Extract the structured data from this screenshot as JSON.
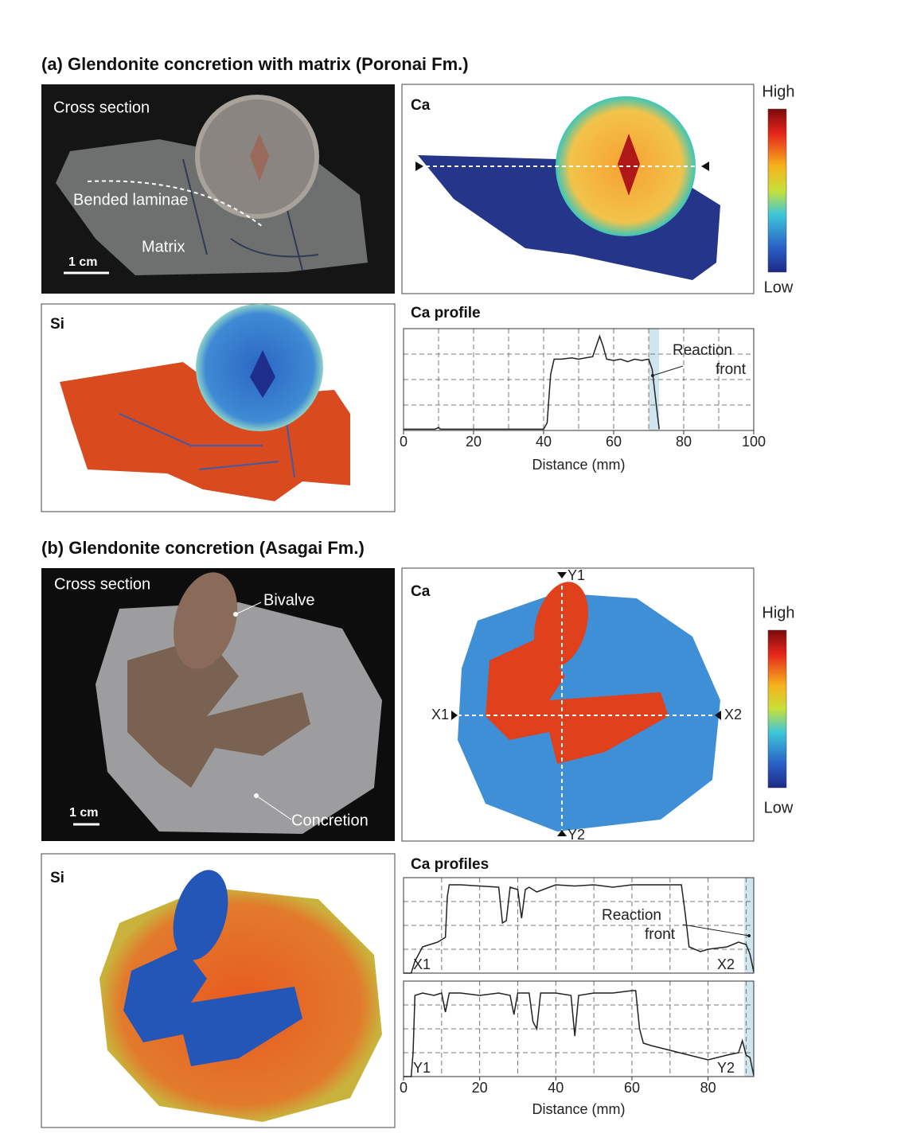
{
  "panel_a": {
    "title": "(a) Glendonite concretion with matrix (Poronai Fm.)",
    "photo": {
      "label": "Cross section",
      "annotations": [
        "Bended laminae",
        "Matrix"
      ],
      "scale_bar": "1 cm"
    },
    "ca_map": {
      "label": "Ca"
    },
    "colorbar": {
      "high": "High",
      "low": "Low"
    },
    "si_map": {
      "label": "Si"
    }
  },
  "panel_b": {
    "title": "(b) Glendonite concretion (Asagai Fm.)",
    "photo": {
      "label": "Cross section",
      "annotations": [
        "Bivalve",
        "Concretion"
      ],
      "scale_bar": "1 cm"
    },
    "ca_map": {
      "label": "Ca",
      "transect_labels": [
        "Y1",
        "Y2",
        "X1",
        "X2"
      ]
    },
    "colorbar": {
      "high": "High",
      "low": "Low"
    },
    "si_map": {
      "label": "Si"
    }
  },
  "chart_data": [
    {
      "type": "line",
      "title": "Ca profile",
      "xlabel": "Distance (mm)",
      "xlim": [
        0,
        100
      ],
      "xticks": [
        0,
        20,
        40,
        60,
        80,
        100
      ],
      "ylim": [
        0,
        4
      ],
      "band": [
        70,
        73
      ],
      "band_color": "#cfe6ef",
      "annotation": [
        "Reaction",
        "front"
      ],
      "series": [
        {
          "color": "#222222",
          "x": [
            0,
            9,
            10,
            10.5,
            11,
            40,
            41,
            42,
            43,
            45,
            48,
            50,
            52,
            54,
            55,
            56,
            57,
            58,
            60,
            62,
            64,
            66,
            68,
            70,
            71,
            72,
            73
          ],
          "values": [
            0.05,
            0.05,
            0.12,
            0.05,
            0.05,
            0.05,
            0.3,
            2.2,
            2.8,
            2.8,
            2.85,
            2.8,
            2.85,
            2.9,
            3.3,
            3.7,
            3.3,
            2.8,
            2.75,
            2.8,
            2.7,
            2.8,
            2.75,
            2.8,
            2.4,
            1.2,
            0.05
          ]
        }
      ]
    },
    {
      "type": "line",
      "title": "Ca profiles",
      "xlabel": "Distance (mm)",
      "xlim": [
        0,
        92
      ],
      "xticks": [
        0,
        20,
        40,
        60,
        80
      ],
      "ylim": [
        0,
        4
      ],
      "band": [
        89.5,
        92
      ],
      "band_color": "#cfe6ef",
      "annotation": [
        "Reaction",
        "front"
      ],
      "series": [
        {
          "color": "#222222",
          "end_labels": [
            "X1",
            "X2"
          ],
          "x": [
            0,
            2,
            3,
            5,
            7,
            9,
            10,
            11,
            11.5,
            12,
            15,
            20,
            25,
            26,
            27,
            28,
            30,
            31,
            32,
            33,
            35,
            40,
            45,
            50,
            55,
            60,
            65,
            70,
            73,
            74,
            75,
            78,
            80,
            85,
            88,
            90,
            91,
            92
          ],
          "values": [
            0,
            0,
            0.5,
            1.1,
            1.2,
            1.3,
            1.4,
            1.5,
            3.2,
            3.7,
            3.7,
            3.65,
            3.6,
            2.1,
            2.2,
            3.6,
            3.5,
            2.3,
            3.5,
            3.6,
            3.4,
            3.7,
            3.65,
            3.7,
            3.6,
            3.7,
            3.7,
            3.7,
            3.7,
            2.5,
            1.1,
            0.9,
            1.0,
            1.1,
            1.3,
            1.2,
            0.8,
            0.05
          ]
        },
        {
          "color": "#222222",
          "end_labels": [
            "Y1",
            "Y2"
          ],
          "x": [
            0,
            2,
            2.5,
            3,
            5,
            8,
            10,
            11,
            12,
            15,
            20,
            25,
            28,
            29,
            30,
            33,
            34,
            35,
            36,
            40,
            44,
            45,
            46,
            50,
            55,
            60,
            61,
            62,
            63,
            65,
            70,
            75,
            80,
            85,
            88,
            89,
            90,
            91,
            92
          ],
          "values": [
            0,
            0,
            1.0,
            3.4,
            3.5,
            3.4,
            3.5,
            2.7,
            3.5,
            3.5,
            3.4,
            3.5,
            3.4,
            2.6,
            3.5,
            3.5,
            2.3,
            2.0,
            3.5,
            3.5,
            3.4,
            1.7,
            3.4,
            3.5,
            3.5,
            3.6,
            3.6,
            2.0,
            1.4,
            1.3,
            1.1,
            0.9,
            0.7,
            0.9,
            1.0,
            1.5,
            0.9,
            0.8,
            0.05
          ]
        }
      ]
    }
  ]
}
